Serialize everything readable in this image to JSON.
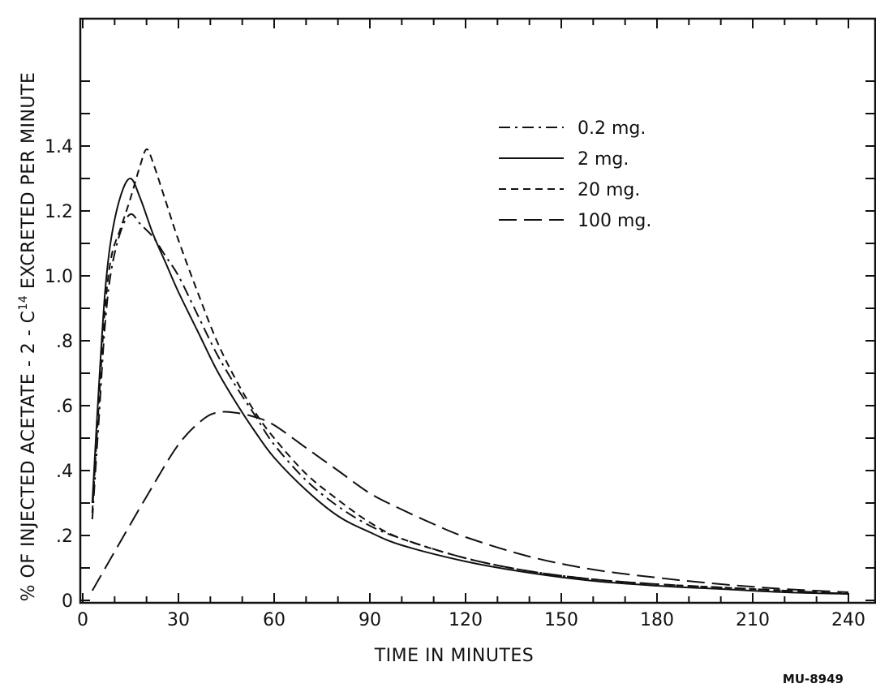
{
  "chart_data": {
    "type": "line",
    "title": "",
    "xlabel": "TIME IN MINUTES",
    "ylabel": "% OF INJECTED ACETATE - 2 - C14 EXCRETED PER MINUTE",
    "ylabel_parts": {
      "before_sup": "% OF INJECTED ACETATE - 2 - C",
      "sup": "14",
      "after_sup": " EXCRETED PER MINUTE"
    },
    "xlim": [
      0,
      240
    ],
    "ylim": [
      0,
      1.6
    ],
    "x_ticks": [
      0,
      30,
      60,
      90,
      120,
      150,
      180,
      210,
      240
    ],
    "x_tick_labels": [
      "0",
      "30",
      "60",
      "90",
      "120",
      "150",
      "180",
      "210",
      "240"
    ],
    "y_ticks": [
      0,
      0.2,
      0.4,
      0.6,
      0.8,
      1.0,
      1.2,
      1.4
    ],
    "y_tick_labels": [
      "0",
      ".2",
      ".4",
      ".6",
      ".8",
      "1.0",
      "1.2",
      "1.4"
    ],
    "grid": false,
    "legend_position": "top-right",
    "reference_label": "MU-8949",
    "series": [
      {
        "name": "0.2 mg.",
        "dash": "dash-dot",
        "x": [
          3,
          5,
          7,
          9,
          12,
          15,
          18,
          22,
          26,
          30,
          36,
          42,
          48,
          54,
          60,
          70,
          80,
          90,
          100,
          120,
          140,
          160,
          180,
          200,
          220,
          240
        ],
        "y": [
          0.25,
          0.55,
          0.85,
          1.02,
          1.14,
          1.19,
          1.16,
          1.12,
          1.06,
          1.0,
          0.88,
          0.76,
          0.66,
          0.57,
          0.48,
          0.37,
          0.29,
          0.23,
          0.19,
          0.13,
          0.09,
          0.065,
          0.05,
          0.04,
          0.03,
          0.02
        ]
      },
      {
        "name": "2 mg.",
        "dash": "solid",
        "x": [
          3,
          5,
          7,
          9,
          12,
          15,
          18,
          22,
          26,
          30,
          36,
          42,
          48,
          54,
          60,
          70,
          80,
          90,
          100,
          120,
          140,
          160,
          180,
          200,
          220,
          240
        ],
        "y": [
          0.3,
          0.65,
          0.95,
          1.12,
          1.25,
          1.3,
          1.24,
          1.13,
          1.04,
          0.95,
          0.83,
          0.71,
          0.61,
          0.52,
          0.44,
          0.34,
          0.26,
          0.21,
          0.17,
          0.12,
          0.085,
          0.06,
          0.045,
          0.035,
          0.025,
          0.02
        ]
      },
      {
        "name": "20 mg.",
        "dash": "dashed",
        "x": [
          3,
          5,
          7,
          9,
          12,
          15,
          18,
          20,
          22,
          26,
          30,
          36,
          42,
          48,
          54,
          60,
          70,
          80,
          90,
          100,
          120,
          140,
          160,
          180,
          200,
          220,
          240
        ],
        "y": [
          0.27,
          0.6,
          0.9,
          1.06,
          1.15,
          1.24,
          1.34,
          1.39,
          1.35,
          1.23,
          1.11,
          0.95,
          0.8,
          0.68,
          0.58,
          0.5,
          0.39,
          0.31,
          0.24,
          0.19,
          0.13,
          0.09,
          0.065,
          0.05,
          0.04,
          0.03,
          0.02
        ]
      },
      {
        "name": "100 mg.",
        "dash": "long-dash",
        "x": [
          3,
          10,
          20,
          30,
          38,
          43,
          48,
          54,
          60,
          70,
          80,
          90,
          100,
          110,
          120,
          140,
          160,
          180,
          200,
          220,
          240
        ],
        "y": [
          0.03,
          0.15,
          0.32,
          0.48,
          0.56,
          0.58,
          0.578,
          0.565,
          0.54,
          0.47,
          0.4,
          0.33,
          0.28,
          0.235,
          0.195,
          0.135,
          0.095,
          0.07,
          0.05,
          0.035,
          0.025
        ]
      }
    ]
  }
}
